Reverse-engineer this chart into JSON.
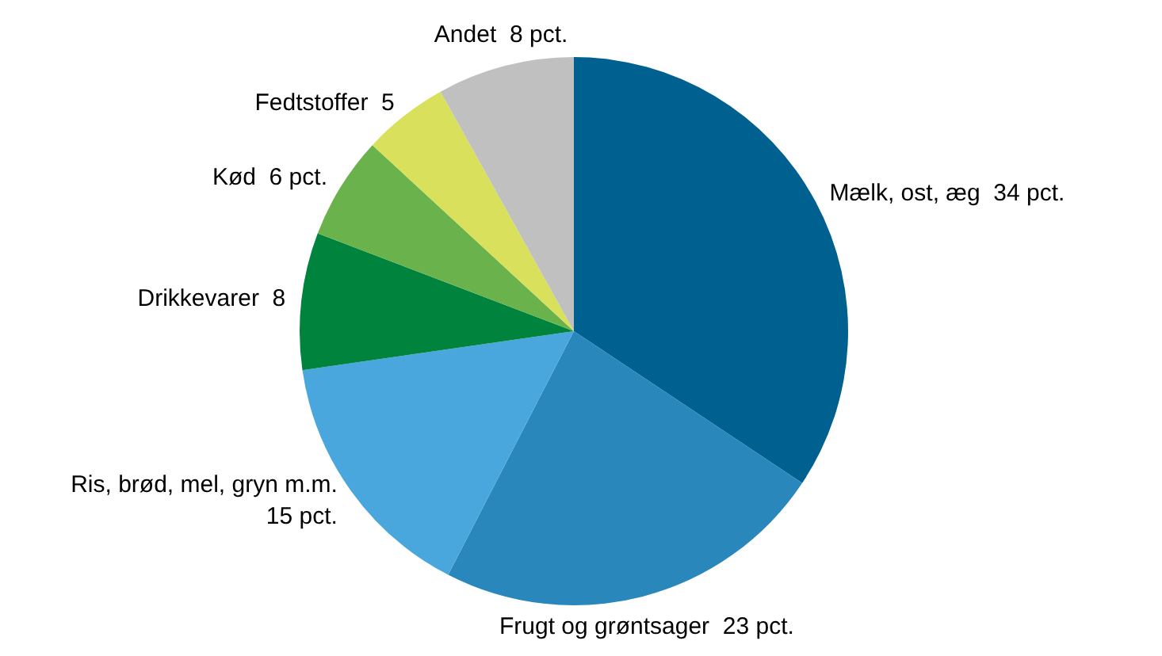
{
  "chart_data": {
    "type": "pie",
    "categories": [
      "Mælk, ost, æg",
      "Frugt og grøntsager",
      "Ris, brød, mel, gryn m.m.",
      "Drikkevarer",
      "Kød",
      "Fedtstoffer",
      "Andet"
    ],
    "values": [
      34,
      23,
      15,
      8,
      6,
      5,
      8
    ],
    "value_labels": [
      "34 pct.",
      "23 pct.",
      "15 pct.",
      "8",
      "6 pct.",
      "5",
      "8 pct."
    ],
    "colors": [
      "#00608f",
      "#2a87bc",
      "#4aa7dd",
      "#00843d",
      "#6ab24c",
      "#d9e05b",
      "#c0c0c0"
    ],
    "legend": false
  }
}
